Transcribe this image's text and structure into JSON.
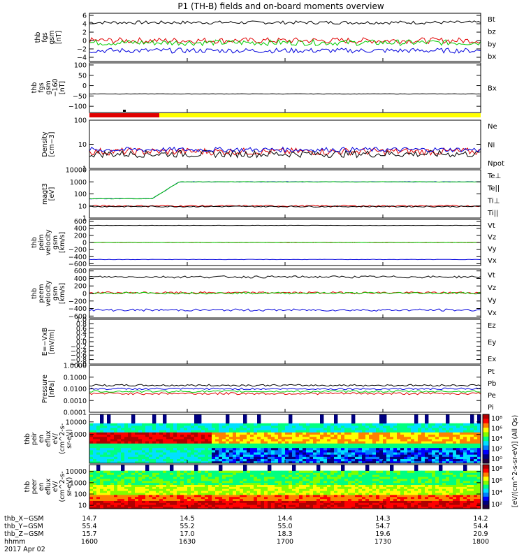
{
  "title": "P1 (TH-B) fields and on-board moments overview",
  "colors": {
    "black": "#000000",
    "red": "#e00000",
    "green": "#00cc00",
    "blue": "#0000dd",
    "yellow": "#ffff00",
    "lightgreen": "#33cc33"
  },
  "chart_data": [
    {
      "type": "line",
      "id": "bgsm",
      "ylabel": [
        "thb",
        "fgs",
        "gsm",
        "[nT]"
      ],
      "ylim": [
        -5,
        6.5
      ],
      "ticks": [
        "6",
        "4",
        "2",
        "0",
        "−2",
        "−4"
      ],
      "tickvals": [
        6,
        4,
        2,
        0,
        -2,
        -4
      ],
      "series": [
        {
          "name": "Bt",
          "color": "black",
          "level": 4.3,
          "noise": 0.4
        },
        {
          "name": "bz",
          "color": "red",
          "level": 0,
          "noise": 0.7
        },
        {
          "name": "by",
          "color": "green",
          "level": -0.5,
          "noise": 0.7
        },
        {
          "name": "bx",
          "color": "blue",
          "level": -2.4,
          "noise": 0.6
        }
      ]
    },
    {
      "type": "line",
      "id": "bx_gsm",
      "ylabel": [
        "thb",
        "fgs",
        "gsm",
        "−160",
        "[nT]"
      ],
      "ylim": [
        -130,
        110
      ],
      "ticks": [
        "100",
        "50",
        "0",
        "−50",
        "−100"
      ],
      "tickvals": [
        100,
        50,
        0,
        -50,
        -100
      ],
      "series": [
        {
          "name": "Bx",
          "color": "black",
          "level": -40,
          "noise": 1
        }
      ]
    },
    {
      "type": "line",
      "id": "density",
      "ylabel": [
        "Density",
        "[cm−3]"
      ],
      "ylim": [
        1,
        100
      ],
      "log": true,
      "ticks": [
        "100",
        "10",
        "1"
      ],
      "tickvals": [
        100,
        10,
        1
      ],
      "series": [
        {
          "name": "Ne",
          "color": "red",
          "level": 5,
          "noise": 0.15
        },
        {
          "name": "Ni",
          "color": "black",
          "level": 4,
          "noise": 0.15
        },
        {
          "name": "Npot",
          "color": "blue",
          "level": 6,
          "noise": 0.1
        }
      ]
    },
    {
      "type": "line",
      "id": "temperature",
      "ylabel": [
        "magt3",
        "[eV]"
      ],
      "ylim": [
        1,
        10000
      ],
      "log": true,
      "ticks": [
        "10000",
        "1000",
        "100",
        "10",
        "1"
      ],
      "tickvals": [
        10000,
        1000,
        100,
        10,
        1
      ],
      "series": [
        {
          "name": "Te⊥",
          "color": "red",
          "level": 10,
          "noise": 0.05
        },
        {
          "name": "Te||",
          "color": "black",
          "level": 9,
          "noise": 0.05
        },
        {
          "name": "Ti⊥",
          "color": "blue",
          "level": 1000,
          "noise": 0.05
        },
        {
          "name": "Ti||",
          "color": "green",
          "level": 1000,
          "noise": 0.05
        }
      ]
    },
    {
      "type": "line",
      "id": "vi",
      "ylabel": [
        "thb",
        "peim",
        "velocity",
        "gsm",
        "[km/s]"
      ],
      "ylim": [
        -650,
        650
      ],
      "ticks": [
        "600",
        "400",
        "200",
        "0",
        "−200",
        "−400",
        "−600"
      ],
      "tickvals": [
        600,
        400,
        200,
        0,
        -200,
        -400,
        -600
      ],
      "series": [
        {
          "name": "Vt",
          "color": "black",
          "level": 480,
          "noise": 5
        },
        {
          "name": "Vz",
          "color": "red",
          "level": 0,
          "noise": 5
        },
        {
          "name": "Vy",
          "color": "green",
          "level": 0,
          "noise": 5
        },
        {
          "name": "Vx",
          "color": "blue",
          "level": -480,
          "noise": 5
        }
      ]
    },
    {
      "type": "line",
      "id": "ve",
      "ylabel": [
        "thb",
        "peem",
        "velocity",
        "gsm",
        "[km/s]"
      ],
      "ylim": [
        -650,
        650
      ],
      "ticks": [
        "600",
        "400",
        "200",
        "0",
        "−200",
        "−400",
        "−600"
      ],
      "tickvals": [
        600,
        400,
        200,
        0,
        -200,
        -400,
        -600
      ],
      "series": [
        {
          "name": "Vt",
          "color": "black",
          "level": 440,
          "noise": 30
        },
        {
          "name": "Vz",
          "color": "red",
          "level": 20,
          "noise": 25
        },
        {
          "name": "Vy",
          "color": "green",
          "level": 10,
          "noise": 25
        },
        {
          "name": "Vx",
          "color": "blue",
          "level": -440,
          "noise": 30
        }
      ]
    },
    {
      "type": "line",
      "id": "efield",
      "ylabel": [
        "E=−VxB",
        "[mV/m]"
      ],
      "ylim": [
        -1,
        1
      ],
      "ticks": [
        "1.0",
        "0.8",
        "0.6",
        "0.4",
        "0.2",
        "0.0",
        "−0.2",
        "−0.4",
        "−0.6",
        "−0.8",
        "−1.0"
      ],
      "tickvals": [
        1,
        0.8,
        0.6,
        0.4,
        0.2,
        0,
        -0.2,
        -0.4,
        -0.6,
        -0.8,
        -1
      ],
      "series": [
        {
          "name": "Ez",
          "color": "red",
          "level": null
        },
        {
          "name": "Ey",
          "color": "green",
          "level": null
        },
        {
          "name": "Ex",
          "color": "blue",
          "level": null
        }
      ]
    },
    {
      "type": "line",
      "id": "pressure",
      "ylabel": [
        "Pressure",
        "[nPa]"
      ],
      "ylim": [
        0.0001,
        1
      ],
      "log": true,
      "ticks": [
        "1.0000",
        "0.1000",
        "0.0100",
        "0.0010",
        "0.0001"
      ],
      "tickvals": [
        1,
        0.1,
        0.01,
        0.001,
        0.0001
      ],
      "series": [
        {
          "name": "Pt",
          "color": "black",
          "level": 0.02,
          "noise": 0.08
        },
        {
          "name": "Pb",
          "color": "red",
          "level": 0.004,
          "noise": 0.1
        },
        {
          "name": "Pe",
          "color": "green",
          "level": 0.006,
          "noise": 0.08
        },
        {
          "name": "Pi",
          "color": "blue",
          "level": 0.01,
          "noise": 0.08
        }
      ]
    },
    {
      "type": "heatmap",
      "id": "ion_spec",
      "ylabel": [
        "thb",
        "peir",
        "en",
        "eflux",
        "eV/",
        "(cm^2-s-",
        "sr-eV)"
      ],
      "ylim": [
        5,
        40000
      ],
      "log": true,
      "ticks": [
        "10000",
        "1000"
      ],
      "tickvals": [
        10000,
        1000
      ]
    },
    {
      "type": "heatmap",
      "id": "elec_spec",
      "ylabel": [
        "thb",
        "peer",
        "en",
        "eflux",
        "eV/",
        "(cm^2-s-",
        "sr-eV)"
      ],
      "ylim": [
        5,
        40000
      ],
      "log": true,
      "ticks": [
        "10000",
        "1000",
        "100",
        "10"
      ],
      "tickvals": [
        10000,
        1000,
        100,
        10
      ]
    }
  ],
  "colorbar": {
    "label": "[eV/(cm^2-s-sr-eV)] (All Qs)",
    "ion_ticks": [
      "10⁸",
      "10⁶",
      "10⁴",
      "10²",
      "10⁰"
    ],
    "elec_ticks": [
      "10⁸",
      "10⁶",
      "10⁴",
      "10²"
    ]
  },
  "xaxis": {
    "rows": [
      {
        "label": "thb_X−GSM",
        "values": [
          "14.7",
          "14.5",
          "14.4",
          "14.3",
          "14.2"
        ]
      },
      {
        "label": "thb_Y−GSM",
        "values": [
          "55.4",
          "55.2",
          "55.0",
          "54.7",
          "54.4"
        ]
      },
      {
        "label": "thb_Z−GSM",
        "values": [
          "15.7",
          "17.0",
          "18.3",
          "19.6",
          "20.9"
        ]
      },
      {
        "label": "hhmm",
        "values": [
          "1600",
          "1630",
          "1700",
          "1730",
          "1800"
        ]
      }
    ],
    "date": "2017 Apr 02",
    "xlim": [
      1600,
      1800
    ]
  }
}
